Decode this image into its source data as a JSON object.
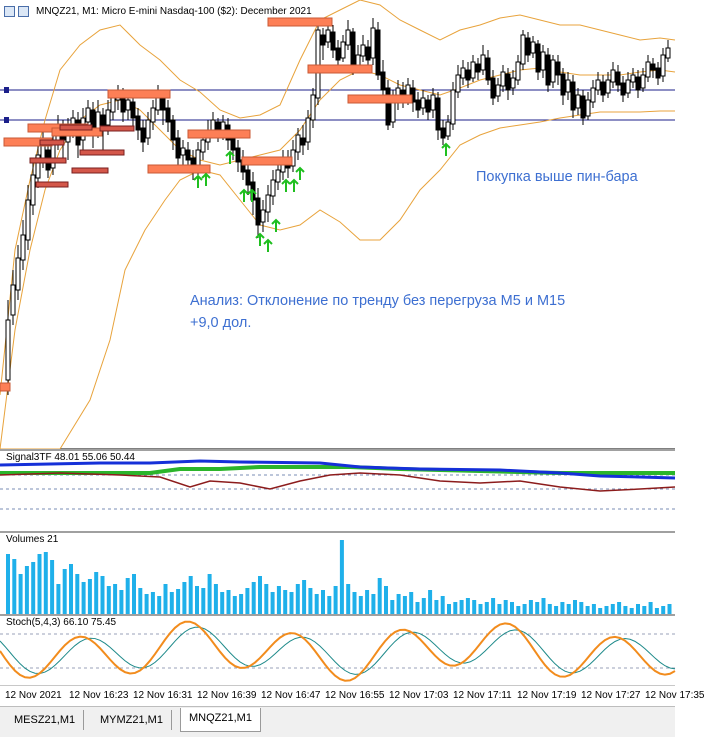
{
  "main_chart": {
    "symbol_tab": "MNQZ21",
    "header": "MNQZ21, M1:  Micro E-mini Nasdaq-100 ($2): December 2021",
    "annotation_top": "Покупка выше пин-бара",
    "annotation_analysis_line1": "Анализ: Отклонение по тренду без перегруза M5 и M15",
    "annotation_analysis_line2": "+9,0 дол."
  },
  "indicators": {
    "signal_label": "Signal3TF 48.01 55.06 50.44",
    "volumes_label": "Volumes 21",
    "stoch_label": "Stoch(5,4,3) 66.10 75.45"
  },
  "time_axis": {
    "labels": [
      "12 Nov 2021",
      "12 Nov 16:23",
      "12 Nov 16:31",
      "12 Nov 16:39",
      "12 Nov 16:47",
      "12 Nov 16:55",
      "12 Nov 17:03",
      "12 Nov 17:11",
      "12 Nov 17:19",
      "12 Nov 17:27",
      "12 Nov 17:35"
    ]
  },
  "tabs": [
    {
      "label": "MESZ21,M1",
      "active": false
    },
    {
      "label": "MYMZ21,M1",
      "active": false
    },
    {
      "label": "MNQZ21,M1",
      "active": true
    }
  ],
  "colors": {
    "bull": "#ffffff",
    "bear": "#000000",
    "bands": "#e8a33c",
    "level_lines": "#1b1f8a",
    "zone_orange": "#fd7f56",
    "zone_red": "#d4574a",
    "arrows": "#1fbf1f",
    "annotation_text": "#3d6fd1",
    "signal_blue": "#1530d8",
    "signal_green": "#2bb52b",
    "signal_darkred": "#8c1c1c",
    "volumes": "#1fb0ea",
    "stoch_main": "#1e8a8a",
    "stoch_signal": "#f28c1d"
  }
}
